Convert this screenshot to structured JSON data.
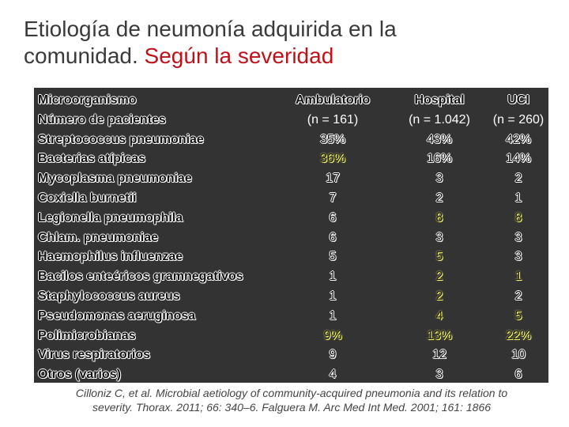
{
  "title": {
    "line1": "Etiología de neumonía adquirida en la",
    "line2_main": "comunidad. ",
    "line2_accent": "Según la severidad"
  },
  "table": {
    "row_labels": [
      "Microorganismo",
      "Número de pacientes",
      "Streptococcus pneumoniae",
      "Bacterias atípicas",
      "Mycoplasma pneumoniae",
      "Coxiella burnetii",
      "Legionella pneumophila",
      "Chlam. pneumoniae",
      "Haemophilus influenzae",
      "Bacilos enteéricos gramnegativos",
      "Staphylococcus aureus",
      "Pseudomonas aeruginosa",
      "Polimicrobianas",
      "Virus respiratorios",
      "Otros (varios)"
    ],
    "columns": [
      {
        "header": "Ambulatorio",
        "count": "(n = 161)",
        "values": [
          "35%",
          "36%",
          "17",
          "7",
          "6",
          "6",
          "5",
          "1",
          "1",
          "1",
          "9%",
          "9",
          "4"
        ]
      },
      {
        "header": "Hospital",
        "count": "(n = 1.042)",
        "values": [
          "43%",
          "16%",
          "3",
          "2",
          "8",
          "3",
          "5",
          "2",
          "2",
          "4",
          "13%",
          "12",
          "3"
        ]
      },
      {
        "header": "UCI",
        "count": "(n = 260)",
        "values": [
          "42%",
          "14%",
          "2",
          "1",
          "8",
          "3",
          "3",
          "1",
          "2",
          "5",
          "22%",
          "10",
          "6"
        ]
      }
    ]
  },
  "citation": {
    "line1": "Cilloniz C, et al. Microbial aetiology of community-acquired pneumonia and its relation to",
    "line2": "severity. Thorax. 2011; 66: 340–6. Falguera M. Arc Med Int Med. 2001; 161: 1866"
  }
}
